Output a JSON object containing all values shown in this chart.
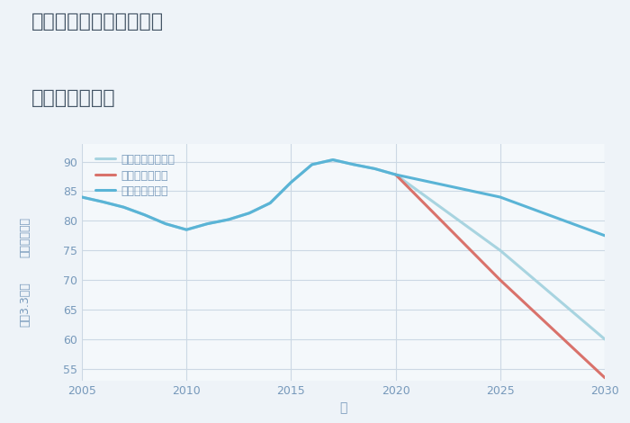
{
  "title_line1": "兵庫県西宮市今津曙町の",
  "title_line2": "土地の価格推移",
  "xlabel": "年",
  "ylabel_top": "単価（万円）",
  "ylabel_bottom": "坪（3.3㎡）",
  "good_scenario": {
    "label": "グッドシナリオ",
    "color": "#5ab4d6",
    "x": [
      2005,
      2006,
      2007,
      2008,
      2009,
      2010,
      2011,
      2012,
      2013,
      2014,
      2015,
      2016,
      2017,
      2018,
      2019,
      2020,
      2025,
      2030
    ],
    "y": [
      84,
      83.2,
      82.3,
      81.0,
      79.5,
      78.5,
      79.5,
      80.2,
      81.3,
      83.0,
      86.5,
      89.5,
      90.3,
      89.5,
      88.8,
      87.8,
      84.0,
      77.5
    ]
  },
  "bad_scenario": {
    "label": "バッドシナリオ",
    "color": "#d9726b",
    "x": [
      2020,
      2025,
      2030
    ],
    "y": [
      87.8,
      70.0,
      53.5
    ]
  },
  "normal_scenario": {
    "label": "ノーマルシナリオ",
    "color": "#a8d4e0",
    "x": [
      2005,
      2006,
      2007,
      2008,
      2009,
      2010,
      2011,
      2012,
      2013,
      2014,
      2015,
      2016,
      2017,
      2018,
      2019,
      2020,
      2025,
      2030
    ],
    "y": [
      84,
      83.2,
      82.3,
      81.0,
      79.5,
      78.5,
      79.5,
      80.2,
      81.3,
      83.0,
      86.5,
      89.5,
      90.3,
      89.5,
      88.8,
      87.8,
      75.0,
      60.0
    ]
  },
  "xlim": [
    2005,
    2030
  ],
  "ylim": [
    53,
    93
  ],
  "yticks": [
    55,
    60,
    65,
    70,
    75,
    80,
    85,
    90
  ],
  "xticks": [
    2005,
    2010,
    2015,
    2020,
    2025,
    2030
  ],
  "bg_color": "#eef3f8",
  "plot_bg_color": "#f4f8fb",
  "grid_color": "#ccd8e4",
  "title_color": "#445566",
  "tick_color": "#7799bb",
  "legend_color": "#7799bb",
  "line_width": 2.2,
  "title_fontsize": 16,
  "legend_fontsize": 9,
  "tick_fontsize": 9,
  "xlabel_fontsize": 10,
  "ylabel_fontsize": 9
}
